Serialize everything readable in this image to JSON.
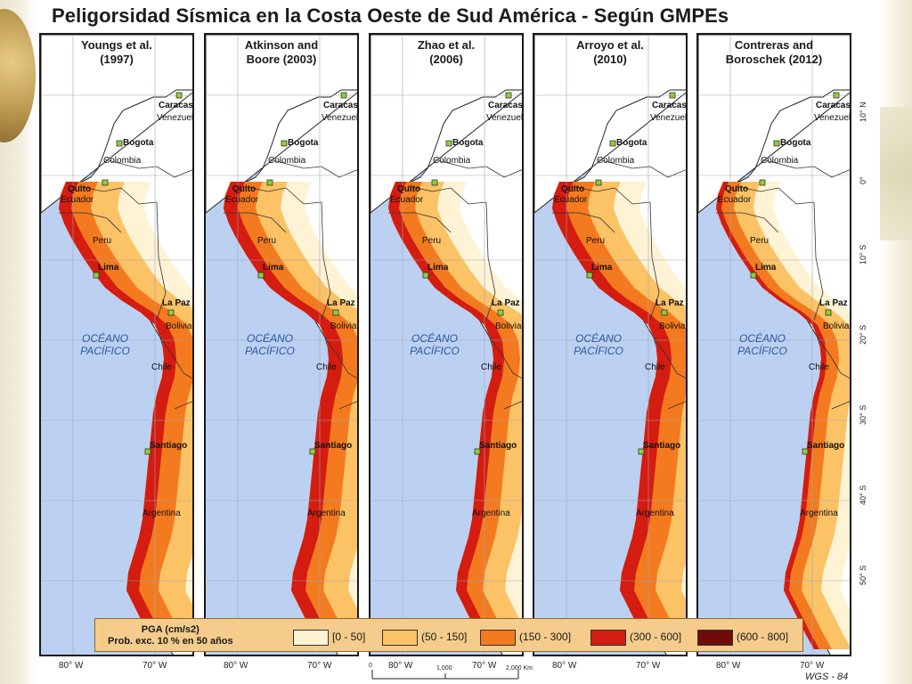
{
  "title": "Peligorsidad Sísmica en la Costa Oeste de Sud América - Según GMPEs",
  "panels": [
    {
      "title_line1": "Youngs et al.",
      "title_line2": "(1997)"
    },
    {
      "title_line1": "Atkinson and",
      "title_line2": "Boore (2003)"
    },
    {
      "title_line1": "Zhao et al.",
      "title_line2": "(2006)"
    },
    {
      "title_line1": "Arroyo et al.",
      "title_line2": "(2010)"
    },
    {
      "title_line1": "Contreras and",
      "title_line2": "Boroschek (2012)"
    }
  ],
  "place_labels": {
    "caracas": "Caracas",
    "venezuela": "Venezuela",
    "bogota": "Bogota",
    "colombia": "Colombia",
    "quito": "Quito",
    "ecuador": "Ecuador",
    "peru": "Peru",
    "lima": "Lima",
    "la_paz": "La Paz",
    "bolivia": "Bolivia",
    "chile": "Chile",
    "santiago": "Santiago",
    "argentina": "Argentina",
    "ocean_line1": "OCÉANO",
    "ocean_line2": "PACÍFICO"
  },
  "lat_labels": [
    "10° N",
    "0°",
    "10° S",
    "20° S",
    "30° S",
    "40° S",
    "50° S"
  ],
  "lon_labels": [
    "80° W",
    "70° W"
  ],
  "legend": {
    "title_line1": "PGA (cm/s2)",
    "title_line2": "Prob. exc. 10 % en 50 años",
    "classes": [
      {
        "label": "[0 - 50]",
        "color": "#fff3d6"
      },
      {
        "label": "(50 - 150]",
        "color": "#fbc266"
      },
      {
        "label": "(150 - 300]",
        "color": "#f47a1f"
      },
      {
        "label": "(300 - 600]",
        "color": "#d41c10"
      },
      {
        "label": "(600 - 800]",
        "color": "#6e0c0c"
      }
    ]
  },
  "scale": {
    "zero": "0",
    "mid": "1,000",
    "end": "2,000 Km"
  },
  "datum": "WGS - 84",
  "colors": {
    "ocean": "#bcd0f2",
    "land": "#ffffff",
    "frame": "#1a1a1a",
    "grid": "#9aa6b8"
  }
}
